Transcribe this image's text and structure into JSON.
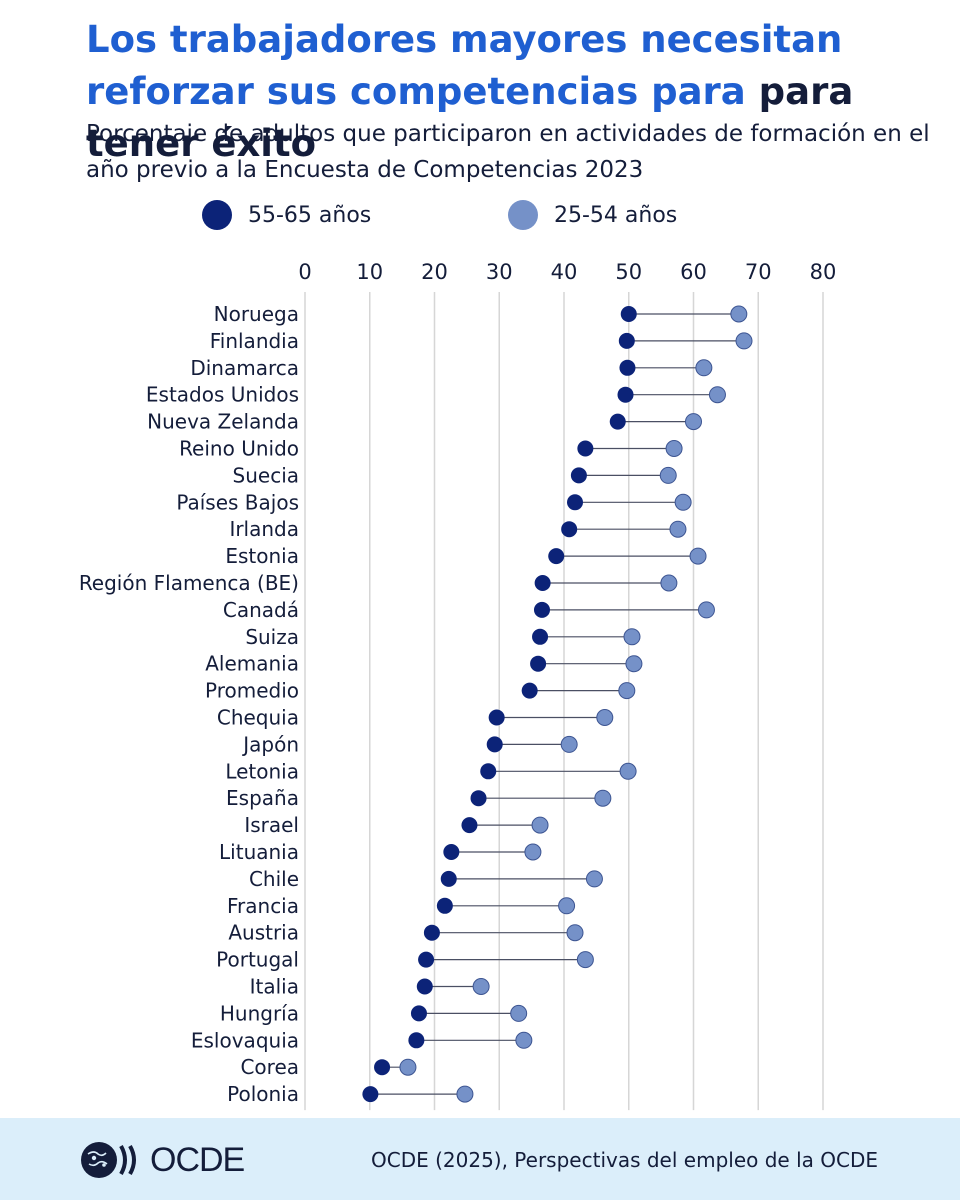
{
  "header": {
    "title_blue": "Los trabajadores mayores necesitan reforzar sus competencias para",
    "title_dark": "para tener éxito",
    "subtitle": "Porcentaje de adultos que participaron en actividades de formación en el año previo a la Encuesta de Competencias 2023"
  },
  "legend": {
    "older_label": "55-65 años",
    "younger_label": "25-54 años"
  },
  "colors": {
    "older": "#0c2378",
    "younger": "#7591c8",
    "title_blue": "#1f5fd1",
    "grid": "#d6d6d6",
    "footer_bg": "#dbeefa"
  },
  "chart_data": {
    "type": "dumbbell",
    "xlim": [
      0,
      80
    ],
    "xticks": [
      0,
      10,
      20,
      30,
      40,
      50,
      60,
      70,
      80
    ],
    "categories": [
      "Noruega",
      "Finlandia",
      "Dinamarca",
      "Estados Unidos",
      "Nueva Zelanda",
      "Reino Unido",
      "Suecia",
      "Países Bajos",
      "Irlanda",
      "Estonia",
      "Región Flamenca (BE)",
      "Canadá",
      "Suiza",
      "Alemania",
      "Promedio",
      "Chequia",
      "Japón",
      "Letonia",
      "España",
      "Israel",
      "Lituania",
      "Chile",
      "Francia",
      "Austria",
      "Portugal",
      "Italia",
      "Hungría",
      "Eslovaquia",
      "Corea",
      "Polonia"
    ],
    "series": [
      {
        "name": "55-65 años",
        "values": [
          50,
          49.7,
          49.8,
          49.5,
          48.3,
          43.3,
          42.3,
          41.7,
          40.8,
          38.8,
          36.7,
          36.6,
          36.3,
          36,
          34.7,
          29.6,
          29.3,
          28.3,
          26.8,
          25.4,
          22.6,
          22.2,
          21.6,
          19.6,
          18.7,
          18.5,
          17.6,
          17.2,
          11.9,
          10.1
        ]
      },
      {
        "name": "25-54 años",
        "values": [
          67,
          67.8,
          61.6,
          63.7,
          60,
          57,
          56.1,
          58.4,
          57.6,
          60.7,
          56.2,
          62,
          50.5,
          50.8,
          49.7,
          46.3,
          40.8,
          49.9,
          46,
          36.3,
          35.2,
          44.7,
          40.4,
          41.7,
          43.3,
          27.2,
          33,
          33.8,
          15.9,
          24.7
        ]
      }
    ]
  },
  "footer": {
    "logo_text": "OCDE",
    "source": "OCDE (2025), Perspectivas del empleo de la OCDE"
  }
}
